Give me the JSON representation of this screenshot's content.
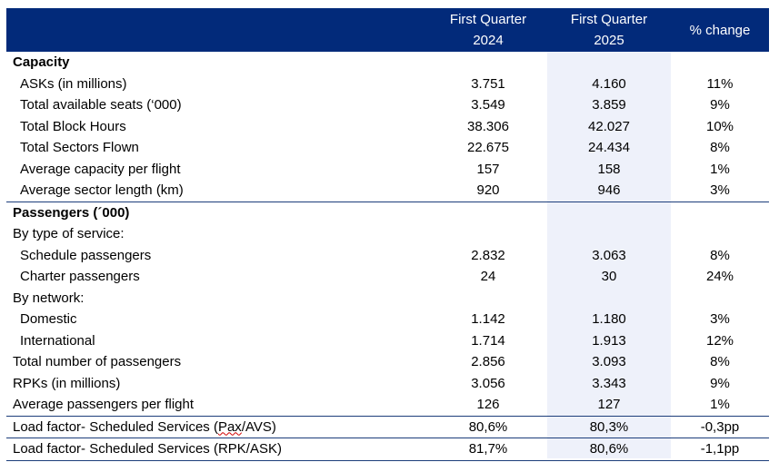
{
  "header": {
    "col1_line1": "First Quarter",
    "col1_line2": "2024",
    "col2_line1": "First Quarter",
    "col2_line2": "2025",
    "col3": "% change"
  },
  "sections": {
    "capacity_title": "Capacity",
    "passengers_title": "Passengers (´000)"
  },
  "rows": [
    {
      "label": "ASKs (in millions)",
      "v2024": "3.751",
      "v2025": "4.160",
      "change": "11%"
    },
    {
      "label": "Total available seats (‘000)",
      "v2024": "3.549",
      "v2025": "3.859",
      "change": "9%"
    },
    {
      "label": "Total Block Hours",
      "v2024": "38.306",
      "v2025": "42.027",
      "change": "10%"
    },
    {
      "label": "Total Sectors Flown",
      "v2024": "22.675",
      "v2025": "24.434",
      "change": "8%"
    },
    {
      "label": "Average capacity per flight",
      "v2024": "157",
      "v2025": "158",
      "change": "1%"
    },
    {
      "label": "Average sector length (km)",
      "v2024": "920",
      "v2025": "946",
      "change": "3%"
    },
    {
      "label": "By type of service:"
    },
    {
      "label": "Schedule passengers",
      "v2024": "2.832",
      "v2025": "3.063",
      "change": "8%"
    },
    {
      "label": "Charter passengers",
      "v2024": "24",
      "v2025": "30",
      "change": "24%"
    },
    {
      "label": "By network:"
    },
    {
      "label": "Domestic",
      "v2024": "1.142",
      "v2025": "1.180",
      "change": "3%"
    },
    {
      "label": "International",
      "v2024": "1.714",
      "v2025": "1.913",
      "change": "12%"
    },
    {
      "label": "Total number of passengers",
      "v2024": "2.856",
      "v2025": "3.093",
      "change": "8%"
    },
    {
      "label": "RPKs (in millions)",
      "v2024": "3.056",
      "v2025": "3.343",
      "change": "9%"
    },
    {
      "label": "Average passengers per flight",
      "v2024": "126",
      "v2025": "127",
      "change": "1%"
    },
    {
      "label_pre": "Load factor- Scheduled Services (",
      "label_mark": "Pax",
      "label_post": "/AVS)",
      "v2024": "80,6%",
      "v2025": "80,3%",
      "change": "-0,3pp"
    },
    {
      "label": "Load factor- Scheduled Services (RPK/ASK)",
      "v2024": "81,7%",
      "v2025": "80,6%",
      "change": "-1,1pp"
    }
  ]
}
